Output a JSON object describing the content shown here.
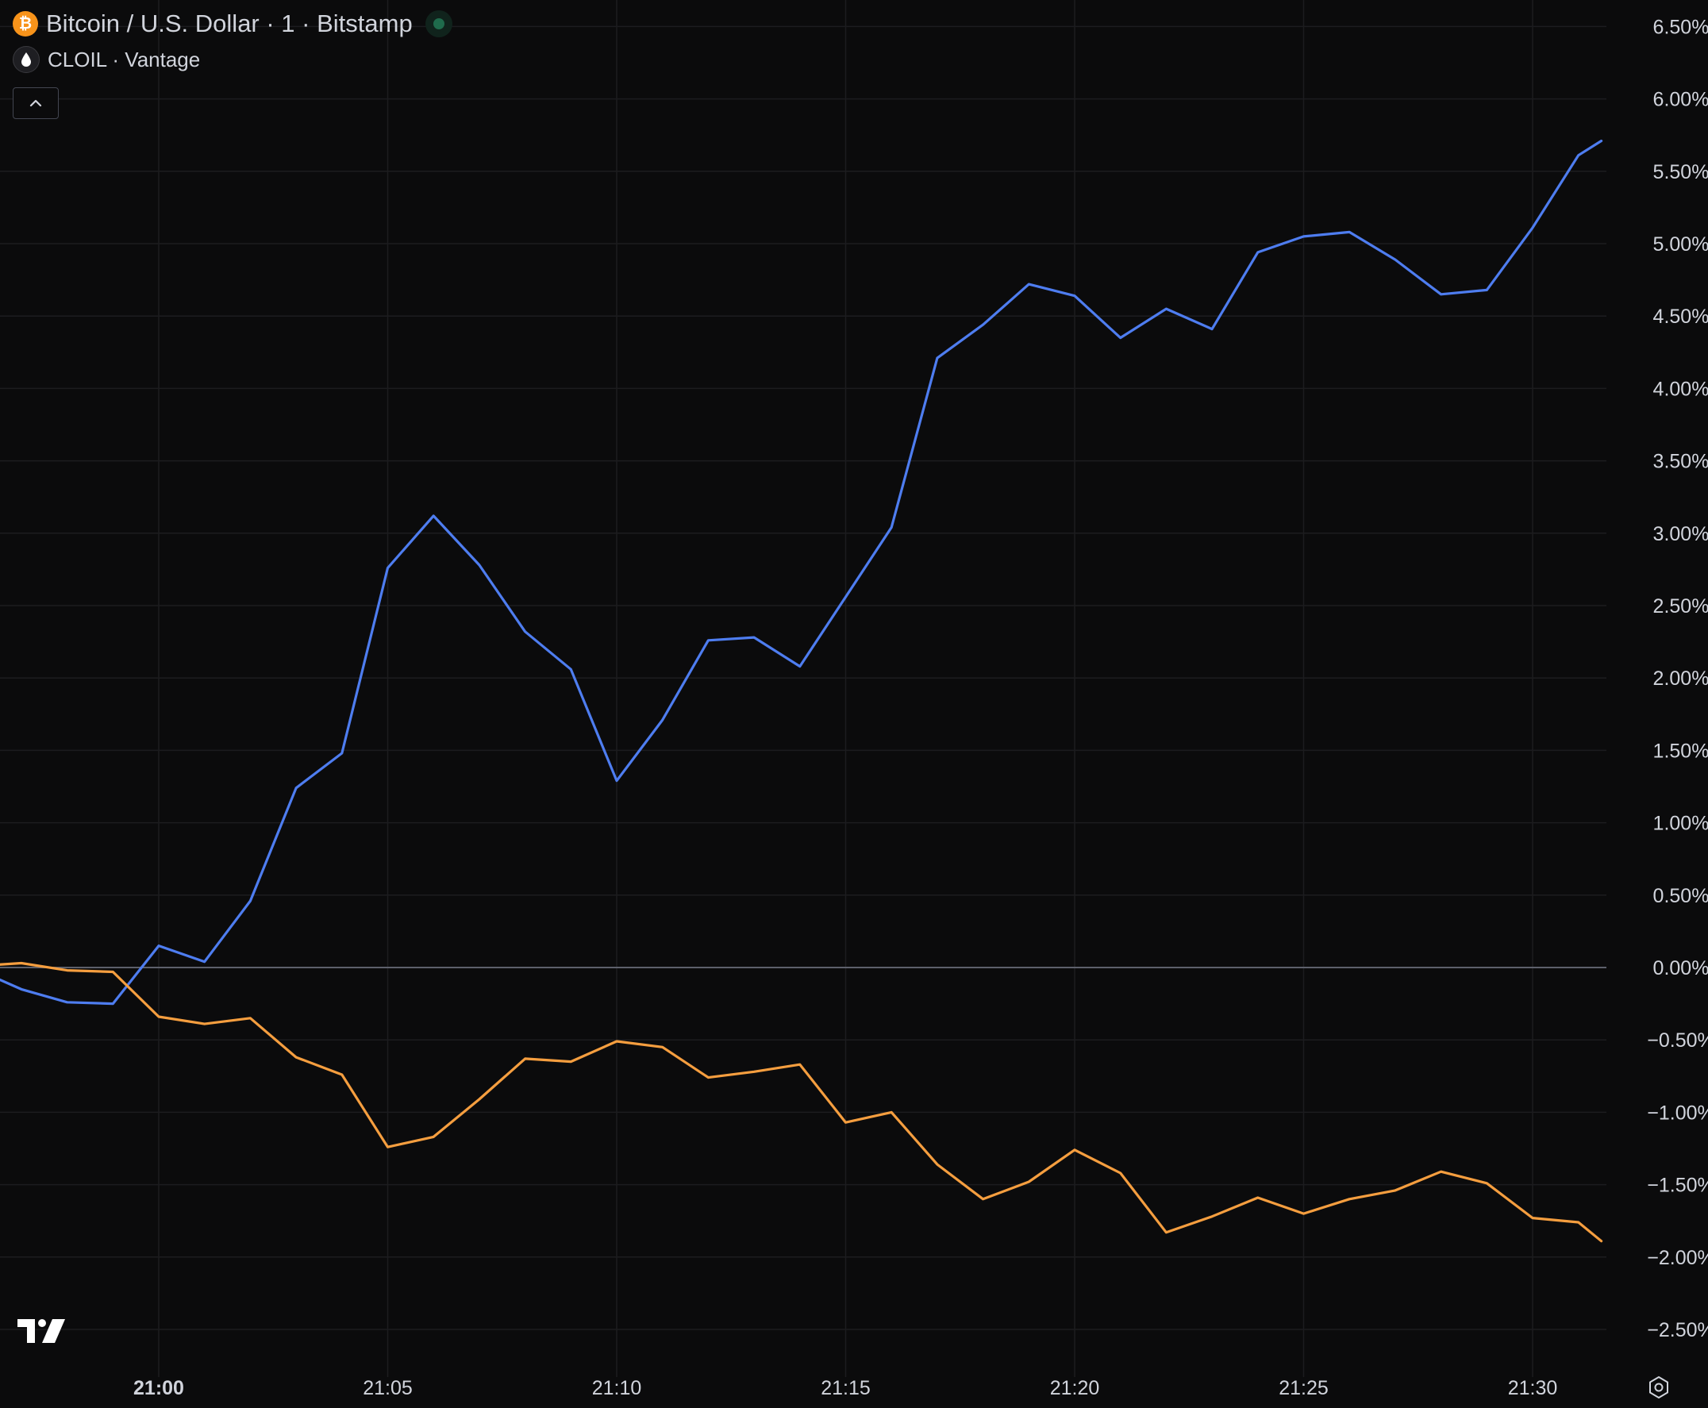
{
  "legend": {
    "main_title": "Bitcoin / U.S. Dollar · 1 · Bitstamp",
    "compare_title": "CLOIL · Vantage",
    "main_icon_glyph": "₿",
    "compare_icon_glyph": "💧"
  },
  "icons": [
    "bitcoin-icon",
    "oil-drop-icon",
    "market-status-icon",
    "chevron-up-icon",
    "settings-icon",
    "tradingview-logo"
  ],
  "colors": {
    "background": "#0b0b0c",
    "btc_line": "#4e7df0",
    "oil_line": "#f59e3f",
    "grid": "#1c1c1f",
    "zero_line": "#5d606b",
    "text": "#d1d4dc"
  },
  "chart_data": {
    "type": "line",
    "title": "Bitcoin / U.S. Dollar · 1 · Bitstamp",
    "xlabel": "",
    "ylabel": "",
    "x_tick_labels": [
      "21:00",
      "21:05",
      "21:10",
      "21:15",
      "21:20",
      "21:25",
      "21:30"
    ],
    "y_tick_labels": [
      "6.50%",
      "6.00%",
      "5.50%",
      "5.00%",
      "4.50%",
      "4.00%",
      "3.50%",
      "3.00%",
      "2.50%",
      "2.00%",
      "1.50%",
      "1.00%",
      "0.50%",
      "0.00%",
      "−0.50%",
      "−1.00%",
      "−1.50%",
      "−2.00%",
      "−2.50%"
    ],
    "y_ticks": [
      6.5,
      6.0,
      5.5,
      5.0,
      4.5,
      4.0,
      3.5,
      3.0,
      2.5,
      2.0,
      1.5,
      1.0,
      0.5,
      0.0,
      -0.5,
      -1.0,
      -1.5,
      -2.0,
      -2.5
    ],
    "ylim": [
      -2.5,
      6.5
    ],
    "x_times": [
      "20:56:30",
      "20:57",
      "20:58",
      "20:59",
      "21:00",
      "21:01",
      "21:02",
      "21:03",
      "21:04",
      "21:05",
      "21:06",
      "21:07",
      "21:08",
      "21:09",
      "21:10",
      "21:11",
      "21:12",
      "21:13",
      "21:14",
      "21:15",
      "21:16",
      "21:17",
      "21:18",
      "21:19",
      "21:20",
      "21:21",
      "21:22",
      "21:23",
      "21:24",
      "21:25",
      "21:26",
      "21:27",
      "21:28",
      "21:29",
      "21:30",
      "21:31",
      "21:31:30"
    ],
    "grid": true,
    "legend": "top-left",
    "series": [
      {
        "name": "Bitcoin / U.S. Dollar · 1 · Bitstamp",
        "color": "#4e7df0",
        "values": [
          -0.08,
          -0.15,
          -0.24,
          -0.25,
          0.15,
          0.04,
          0.46,
          1.24,
          1.48,
          2.76,
          3.12,
          2.78,
          2.32,
          2.06,
          1.29,
          1.71,
          2.26,
          2.28,
          2.08,
          2.56,
          3.04,
          4.21,
          4.44,
          4.72,
          4.64,
          4.35,
          4.55,
          4.41,
          4.94,
          5.05,
          5.08,
          4.89,
          4.65,
          4.68,
          5.11,
          5.61,
          5.71
        ]
      },
      {
        "name": "CLOIL · Vantage",
        "color": "#f59e3f",
        "values": [
          0.02,
          0.03,
          -0.02,
          -0.03,
          -0.34,
          -0.39,
          -0.35,
          -0.62,
          -0.74,
          -1.24,
          -1.17,
          -0.91,
          -0.63,
          -0.65,
          -0.51,
          -0.55,
          -0.76,
          -0.72,
          -0.67,
          -1.07,
          -1.0,
          -1.36,
          -1.6,
          -1.48,
          -1.26,
          -1.42,
          -1.83,
          -1.72,
          -1.59,
          -1.7,
          -1.6,
          -1.54,
          -1.41,
          -1.49,
          -1.73,
          -1.76,
          -1.89
        ]
      }
    ]
  }
}
